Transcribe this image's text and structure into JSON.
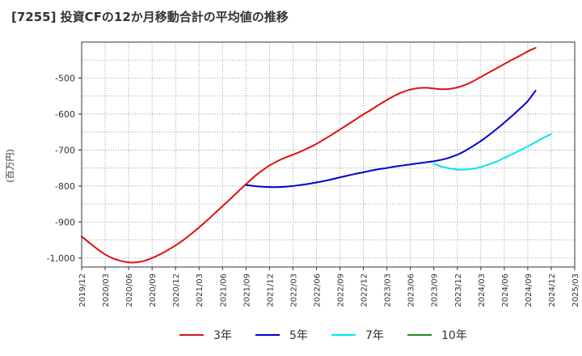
{
  "chart_data": {
    "type": "line",
    "title": "[7255]  投資CFの12か月移動合計の平均値の推移",
    "ylabel": "(百万円)",
    "xlabel": "",
    "ylim": [
      -1025,
      -400
    ],
    "yticks": [
      -1000,
      -900,
      -800,
      -700,
      -600,
      -500
    ],
    "ytick_labels": [
      "-1,000",
      "-900",
      "-800",
      "-700",
      "-600",
      "-500"
    ],
    "xlim": [
      "2019-12",
      "2025-03"
    ],
    "xtick_labels": [
      "2019/12",
      "2020/03",
      "2020/06",
      "2020/09",
      "2020/12",
      "2021/03",
      "2021/06",
      "2021/09",
      "2021/12",
      "2022/03",
      "2022/06",
      "2022/09",
      "2022/12",
      "2023/03",
      "2023/06",
      "2023/09",
      "2023/12",
      "2024/03",
      "2024/06",
      "2024/09",
      "2024/12",
      "2025/03"
    ],
    "grid": true,
    "legend_position": "bottom",
    "series": [
      {
        "name": "3年",
        "color": "#dd1111",
        "points": [
          [
            "2019-12",
            -940
          ],
          [
            "2020-01",
            -958
          ],
          [
            "2020-02",
            -975
          ],
          [
            "2020-03",
            -990
          ],
          [
            "2020-04",
            -1001
          ],
          [
            "2020-05",
            -1008
          ],
          [
            "2020-06",
            -1012
          ],
          [
            "2020-07",
            -1012
          ],
          [
            "2020-08",
            -1008
          ],
          [
            "2020-09",
            -1000
          ],
          [
            "2020-10",
            -990
          ],
          [
            "2020-11",
            -978
          ],
          [
            "2020-12",
            -965
          ],
          [
            "2021-01",
            -950
          ],
          [
            "2021-02",
            -933
          ],
          [
            "2021-03",
            -915
          ],
          [
            "2021-04",
            -896
          ],
          [
            "2021-05",
            -876
          ],
          [
            "2021-06",
            -856
          ],
          [
            "2021-07",
            -836
          ],
          [
            "2021-08",
            -815
          ],
          [
            "2021-09",
            -795
          ],
          [
            "2021-10",
            -775
          ],
          [
            "2021-11",
            -758
          ],
          [
            "2021-12",
            -743
          ],
          [
            "2022-01",
            -731
          ],
          [
            "2022-02",
            -721
          ],
          [
            "2022-03",
            -713
          ],
          [
            "2022-04",
            -704
          ],
          [
            "2022-05",
            -694
          ],
          [
            "2022-06",
            -683
          ],
          [
            "2022-07",
            -670
          ],
          [
            "2022-08",
            -657
          ],
          [
            "2022-09",
            -643
          ],
          [
            "2022-10",
            -629
          ],
          [
            "2022-11",
            -615
          ],
          [
            "2022-12",
            -601
          ],
          [
            "2023-01",
            -588
          ],
          [
            "2023-02",
            -574
          ],
          [
            "2023-03",
            -561
          ],
          [
            "2023-04",
            -549
          ],
          [
            "2023-05",
            -539
          ],
          [
            "2023-06",
            -532
          ],
          [
            "2023-07",
            -528
          ],
          [
            "2023-08",
            -527
          ],
          [
            "2023-09",
            -529
          ],
          [
            "2023-10",
            -531
          ],
          [
            "2023-11",
            -530
          ],
          [
            "2023-12",
            -526
          ],
          [
            "2024-01",
            -519
          ],
          [
            "2024-02",
            -509
          ],
          [
            "2024-03",
            -497
          ],
          [
            "2024-04",
            -485
          ],
          [
            "2024-05",
            -473
          ],
          [
            "2024-06",
            -461
          ],
          [
            "2024-07",
            -449
          ],
          [
            "2024-08",
            -438
          ],
          [
            "2024-09",
            -426
          ],
          [
            "2024-10",
            -416
          ]
        ]
      },
      {
        "name": "5年",
        "color": "#0000cc",
        "points": [
          [
            "2021-09",
            -797
          ],
          [
            "2021-10",
            -800
          ],
          [
            "2021-11",
            -802
          ],
          [
            "2021-12",
            -803
          ],
          [
            "2022-01",
            -803
          ],
          [
            "2022-02",
            -802
          ],
          [
            "2022-03",
            -800
          ],
          [
            "2022-04",
            -797
          ],
          [
            "2022-05",
            -794
          ],
          [
            "2022-06",
            -790
          ],
          [
            "2022-07",
            -786
          ],
          [
            "2022-08",
            -781
          ],
          [
            "2022-09",
            -776
          ],
          [
            "2022-10",
            -771
          ],
          [
            "2022-11",
            -766
          ],
          [
            "2022-12",
            -762
          ],
          [
            "2023-01",
            -757
          ],
          [
            "2023-02",
            -753
          ],
          [
            "2023-03",
            -750
          ],
          [
            "2023-04",
            -746
          ],
          [
            "2023-05",
            -743
          ],
          [
            "2023-06",
            -740
          ],
          [
            "2023-07",
            -737
          ],
          [
            "2023-08",
            -734
          ],
          [
            "2023-09",
            -731
          ],
          [
            "2023-10",
            -727
          ],
          [
            "2023-11",
            -721
          ],
          [
            "2023-12",
            -713
          ],
          [
            "2024-01",
            -702
          ],
          [
            "2024-02",
            -689
          ],
          [
            "2024-03",
            -675
          ],
          [
            "2024-04",
            -659
          ],
          [
            "2024-05",
            -642
          ],
          [
            "2024-06",
            -624
          ],
          [
            "2024-07",
            -605
          ],
          [
            "2024-08",
            -585
          ],
          [
            "2024-09",
            -564
          ],
          [
            "2024-10",
            -535
          ]
        ]
      },
      {
        "name": "7年",
        "color": "#00e5ee",
        "points": [
          [
            "2023-09",
            -738
          ],
          [
            "2023-10",
            -746
          ],
          [
            "2023-11",
            -751
          ],
          [
            "2023-12",
            -754
          ],
          [
            "2024-01",
            -754
          ],
          [
            "2024-02",
            -752
          ],
          [
            "2024-03",
            -747
          ],
          [
            "2024-04",
            -740
          ],
          [
            "2024-05",
            -732
          ],
          [
            "2024-06",
            -722
          ],
          [
            "2024-07",
            -712
          ],
          [
            "2024-08",
            -701
          ],
          [
            "2024-09",
            -690
          ],
          [
            "2024-10",
            -678
          ],
          [
            "2024-11",
            -666
          ],
          [
            "2024-12",
            -656
          ]
        ]
      },
      {
        "name": "10年",
        "color": "#228b22",
        "points": []
      }
    ]
  }
}
